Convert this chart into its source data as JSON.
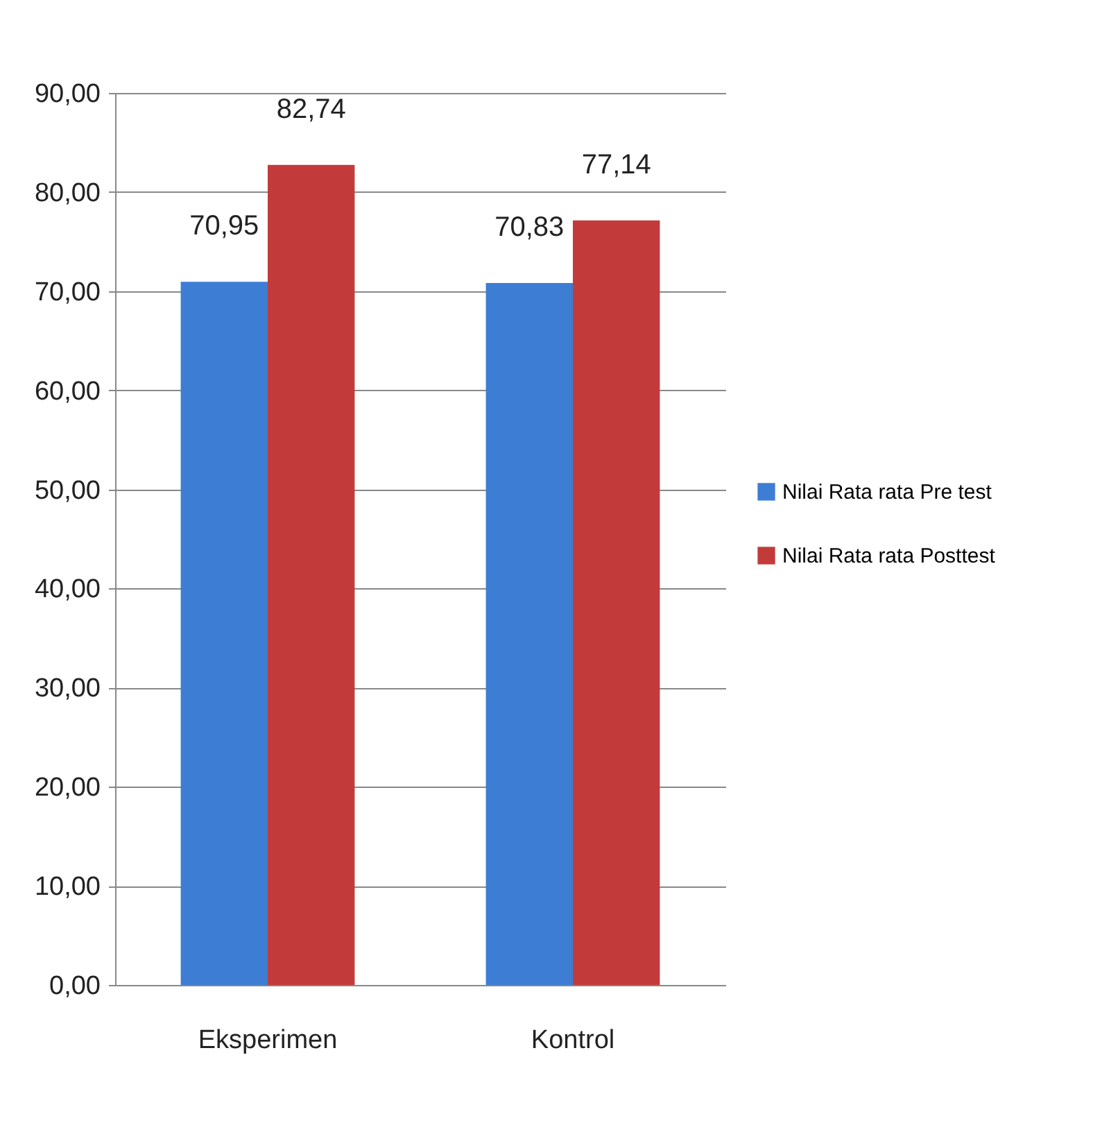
{
  "chart_data": {
    "type": "bar",
    "categories": [
      "Eksperimen",
      "Kontrol"
    ],
    "series": [
      {
        "name": "Nilai Rata rata Pre test",
        "color": "#3d7dd4",
        "values": [
          70.95,
          70.83
        ],
        "value_labels": [
          "70,95",
          "70,83"
        ]
      },
      {
        "name": "Nilai Rata rata Posttest",
        "color": "#c23b3a",
        "values": [
          82.74,
          77.14
        ],
        "value_labels": [
          "82,74",
          "77,14"
        ]
      }
    ],
    "ylim": [
      0,
      90
    ],
    "yticks": [
      {
        "value": 0,
        "label": "0,00"
      },
      {
        "value": 10,
        "label": "10,00"
      },
      {
        "value": 20,
        "label": "20,00"
      },
      {
        "value": 30,
        "label": "30,00"
      },
      {
        "value": 40,
        "label": "40,00"
      },
      {
        "value": 50,
        "label": "50,00"
      },
      {
        "value": 60,
        "label": "60,00"
      },
      {
        "value": 70,
        "label": "70,00"
      },
      {
        "value": 80,
        "label": "80,00"
      },
      {
        "value": 90,
        "label": "90,00"
      }
    ],
    "grid": "y",
    "legend": "right"
  }
}
